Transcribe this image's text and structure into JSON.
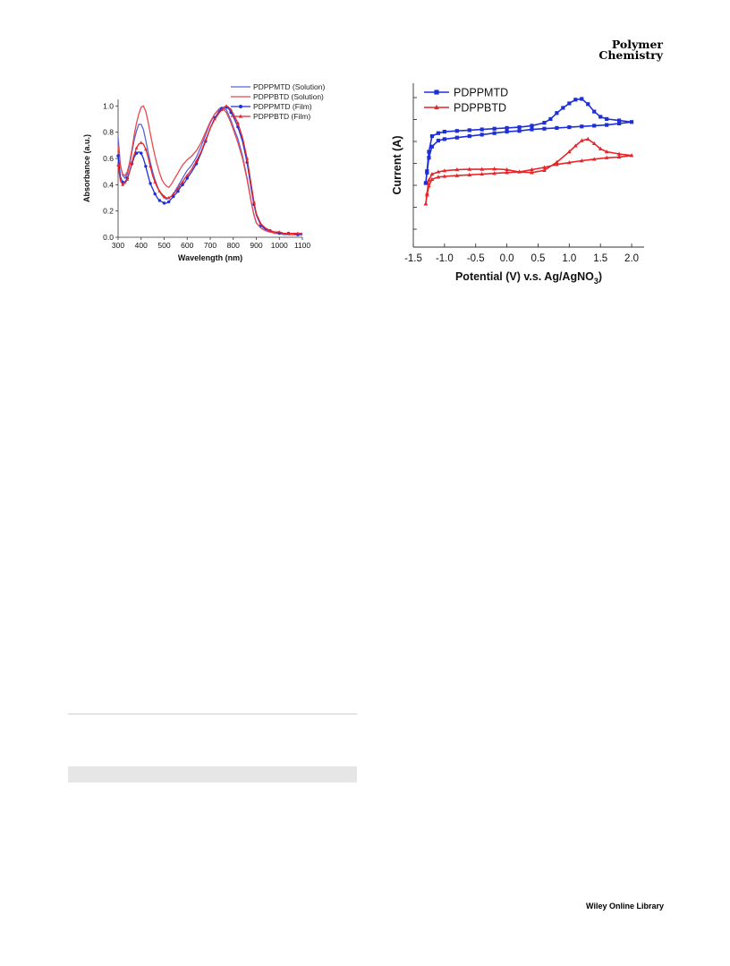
{
  "header": {
    "journal_line1": "Polymer",
    "journal_line2": "Chemistry"
  },
  "footer": {
    "publisher": "Wiley Online Library"
  },
  "colors": {
    "blue": "#1f2fd6",
    "red": "#e52629",
    "blue_light": "#5a63d9",
    "red_light": "#e8494e"
  },
  "chart_data": [
    {
      "type": "line",
      "xlabel": "Wavelength (nm)",
      "ylabel": "Absorbance (a.u.)",
      "xlim": [
        300,
        1100
      ],
      "ylim": [
        0.0,
        1.05
      ],
      "xticks": [
        "300",
        "400",
        "500",
        "600",
        "700",
        "800",
        "900",
        "1000",
        "1100"
      ],
      "yticks": [
        "0.0",
        "0.2",
        "0.4",
        "0.6",
        "0.8",
        "1.0"
      ],
      "legend_position": "top-right",
      "series": [
        {
          "name": "PDPPMTD (Solution)",
          "color": "#5a63d9",
          "marker": "none",
          "x": [
            300,
            310,
            320,
            330,
            340,
            350,
            360,
            370,
            380,
            390,
            400,
            410,
            420,
            430,
            440,
            450,
            460,
            470,
            480,
            490,
            500,
            510,
            520,
            530,
            540,
            550,
            560,
            570,
            580,
            590,
            600,
            620,
            640,
            660,
            680,
            700,
            720,
            740,
            750,
            760,
            770,
            780,
            790,
            800,
            820,
            840,
            860,
            880,
            890,
            900,
            920,
            940,
            960,
            980,
            1000,
            1020,
            1040,
            1060,
            1080,
            1100
          ],
          "y": [
            0.76,
            0.55,
            0.47,
            0.45,
            0.48,
            0.55,
            0.65,
            0.74,
            0.81,
            0.86,
            0.86,
            0.82,
            0.74,
            0.65,
            0.57,
            0.5,
            0.44,
            0.39,
            0.35,
            0.32,
            0.3,
            0.29,
            0.3,
            0.31,
            0.33,
            0.36,
            0.39,
            0.42,
            0.45,
            0.48,
            0.51,
            0.55,
            0.61,
            0.69,
            0.78,
            0.87,
            0.94,
            0.98,
            0.99,
            0.98,
            0.97,
            0.93,
            0.89,
            0.84,
            0.75,
            0.62,
            0.45,
            0.25,
            0.17,
            0.11,
            0.07,
            0.05,
            0.04,
            0.03,
            0.03,
            0.02,
            0.02,
            0.02,
            0.02,
            0.02
          ]
        },
        {
          "name": "PDPPBTD (Solution)",
          "color": "#e8494e",
          "marker": "none",
          "x": [
            300,
            310,
            320,
            330,
            340,
            350,
            360,
            370,
            380,
            390,
            400,
            410,
            420,
            430,
            440,
            450,
            460,
            470,
            480,
            490,
            500,
            510,
            520,
            530,
            540,
            550,
            560,
            570,
            580,
            590,
            600,
            620,
            640,
            660,
            680,
            700,
            720,
            740,
            750,
            760,
            770,
            780,
            790,
            800,
            820,
            840,
            860,
            880,
            890,
            900,
            920,
            940,
            960,
            980,
            1000,
            1020,
            1040,
            1060,
            1080,
            1100
          ],
          "y": [
            0.7,
            0.54,
            0.48,
            0.47,
            0.5,
            0.57,
            0.67,
            0.78,
            0.87,
            0.94,
            0.99,
            1.0,
            0.96,
            0.88,
            0.79,
            0.7,
            0.62,
            0.55,
            0.49,
            0.44,
            0.41,
            0.39,
            0.38,
            0.4,
            0.43,
            0.46,
            0.49,
            0.52,
            0.55,
            0.57,
            0.59,
            0.62,
            0.66,
            0.72,
            0.8,
            0.88,
            0.94,
            0.97,
            0.98,
            0.97,
            0.95,
            0.91,
            0.87,
            0.82,
            0.72,
            0.6,
            0.44,
            0.25,
            0.17,
            0.11,
            0.07,
            0.05,
            0.04,
            0.03,
            0.03,
            0.03,
            0.02,
            0.02,
            0.02,
            0.02
          ]
        },
        {
          "name": "PDPPMTD (Film)",
          "color": "#1f2fd6",
          "marker": "circle",
          "x": [
            300,
            310,
            320,
            330,
            340,
            350,
            360,
            370,
            380,
            390,
            400,
            410,
            420,
            430,
            440,
            450,
            460,
            470,
            480,
            490,
            500,
            510,
            520,
            530,
            540,
            550,
            560,
            570,
            580,
            590,
            600,
            620,
            640,
            660,
            680,
            700,
            720,
            740,
            750,
            760,
            770,
            780,
            790,
            800,
            820,
            840,
            860,
            880,
            890,
            900,
            920,
            940,
            960,
            980,
            1000,
            1020,
            1040,
            1060,
            1080,
            1100
          ],
          "y": [
            0.62,
            0.46,
            0.42,
            0.42,
            0.45,
            0.5,
            0.56,
            0.61,
            0.64,
            0.65,
            0.64,
            0.6,
            0.54,
            0.47,
            0.41,
            0.37,
            0.33,
            0.3,
            0.28,
            0.27,
            0.26,
            0.26,
            0.27,
            0.29,
            0.31,
            0.33,
            0.35,
            0.38,
            0.4,
            0.42,
            0.45,
            0.5,
            0.56,
            0.64,
            0.73,
            0.83,
            0.91,
            0.96,
            0.98,
            0.99,
            0.99,
            0.98,
            0.95,
            0.92,
            0.84,
            0.73,
            0.57,
            0.35,
            0.25,
            0.17,
            0.09,
            0.06,
            0.05,
            0.04,
            0.03,
            0.03,
            0.03,
            0.03,
            0.02,
            0.02
          ]
        },
        {
          "name": "PDPPBTD (Film)",
          "color": "#e52629",
          "marker": "triangle",
          "x": [
            300,
            310,
            320,
            330,
            340,
            350,
            360,
            370,
            380,
            390,
            400,
            410,
            420,
            430,
            440,
            450,
            460,
            470,
            480,
            490,
            500,
            510,
            520,
            530,
            540,
            550,
            560,
            570,
            580,
            590,
            600,
            620,
            640,
            660,
            680,
            700,
            720,
            740,
            750,
            760,
            770,
            780,
            790,
            800,
            820,
            840,
            860,
            880,
            890,
            900,
            920,
            940,
            960,
            980,
            1000,
            1020,
            1040,
            1060,
            1080,
            1100
          ],
          "y": [
            0.55,
            0.43,
            0.4,
            0.41,
            0.44,
            0.5,
            0.57,
            0.63,
            0.68,
            0.71,
            0.72,
            0.71,
            0.67,
            0.61,
            0.54,
            0.47,
            0.42,
            0.38,
            0.35,
            0.33,
            0.31,
            0.3,
            0.3,
            0.31,
            0.33,
            0.35,
            0.37,
            0.4,
            0.42,
            0.45,
            0.47,
            0.52,
            0.58,
            0.65,
            0.74,
            0.83,
            0.9,
            0.95,
            0.97,
            0.99,
            1.0,
            0.99,
            0.97,
            0.94,
            0.87,
            0.76,
            0.6,
            0.38,
            0.27,
            0.18,
            0.1,
            0.07,
            0.05,
            0.04,
            0.04,
            0.03,
            0.03,
            0.03,
            0.03,
            0.03
          ]
        }
      ]
    },
    {
      "type": "line",
      "xlabel": "Potential (V) v.s. Ag/AgNO",
      "xlabel_subscript": "3",
      "xlabel_close": ")",
      "ylabel": "Current (A)",
      "xlim": [
        -1.5,
        2.2
      ],
      "ylim": [
        -11,
        11
      ],
      "xticks": [
        "-1.5",
        "-1.0",
        "-0.5",
        "0.0",
        "0.5",
        "1.0",
        "1.5",
        "2.0"
      ],
      "legend_position": "top-left",
      "series": [
        {
          "name": "PDPPMTD",
          "color": "#1f2fd6",
          "marker": "square",
          "x": [
            -1.3,
            -1.28,
            -1.25,
            -1.2,
            -1.1,
            -1.0,
            -0.8,
            -0.6,
            -0.4,
            -0.2,
            0.0,
            0.2,
            0.4,
            0.6,
            0.7,
            0.8,
            0.9,
            1.0,
            1.1,
            1.2,
            1.3,
            1.4,
            1.5,
            1.6,
            1.8,
            2.0,
            1.8,
            1.6,
            1.4,
            1.2,
            1.0,
            0.8,
            0.6,
            0.4,
            0.2,
            0.0,
            -0.2,
            -0.4,
            -0.6,
            -0.8,
            -1.0,
            -1.1,
            -1.2,
            -1.25,
            -1.28,
            -1.3
          ],
          "y": [
            -2.4,
            -0.8,
            1.8,
            3.9,
            4.3,
            4.5,
            4.6,
            4.7,
            4.8,
            4.9,
            5.0,
            5.1,
            5.3,
            5.7,
            6.2,
            7.0,
            7.7,
            8.3,
            8.8,
            8.9,
            8.2,
            7.2,
            6.5,
            6.2,
            6.0,
            5.8,
            5.6,
            5.4,
            5.3,
            5.2,
            5.1,
            5.0,
            4.9,
            4.8,
            4.6,
            4.5,
            4.3,
            4.1,
            3.9,
            3.7,
            3.5,
            3.3,
            2.5,
            1.0,
            -1.0,
            -2.4
          ]
        },
        {
          "name": "PDPPBTD",
          "color": "#e52629",
          "marker": "triangle",
          "x": [
            -1.3,
            -1.28,
            -1.25,
            -1.2,
            -1.1,
            -1.0,
            -0.8,
            -0.6,
            -0.4,
            -0.2,
            0.0,
            0.2,
            0.4,
            0.6,
            0.8,
            1.0,
            1.1,
            1.2,
            1.3,
            1.4,
            1.5,
            1.6,
            1.8,
            2.0,
            1.8,
            1.6,
            1.4,
            1.2,
            1.0,
            0.8,
            0.6,
            0.4,
            0.2,
            0.0,
            -0.2,
            -0.4,
            -0.6,
            -0.8,
            -1.0,
            -1.1,
            -1.2,
            -1.25,
            -1.28,
            -1.3
          ],
          "y": [
            -5.2,
            -3.8,
            -2.0,
            -1.2,
            -0.9,
            -0.75,
            -0.6,
            -0.55,
            -0.55,
            -0.5,
            -0.6,
            -0.9,
            -1.0,
            -0.7,
            0.4,
            1.8,
            2.6,
            3.3,
            3.5,
            2.9,
            2.2,
            1.8,
            1.5,
            1.3,
            1.1,
            1.0,
            0.8,
            0.6,
            0.35,
            0.1,
            -0.3,
            -0.6,
            -0.9,
            -1.0,
            -1.1,
            -1.2,
            -1.3,
            -1.4,
            -1.5,
            -1.6,
            -1.9,
            -2.8,
            -4.0,
            -5.2
          ]
        }
      ]
    }
  ]
}
